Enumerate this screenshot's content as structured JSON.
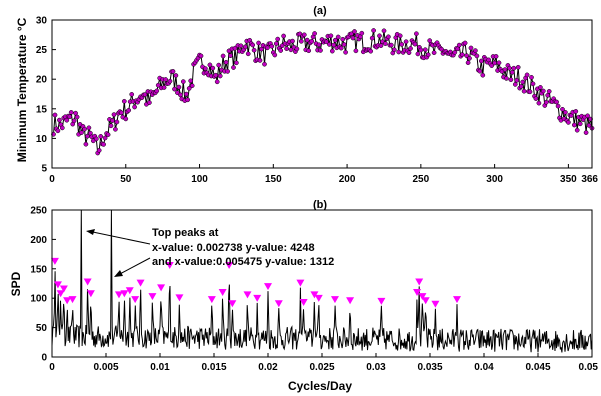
{
  "chart_data": [
    {
      "type": "line",
      "title": "(a)",
      "xlabel": "",
      "ylabel": "Minimum Temperature °C",
      "xlim": [
        0,
        366
      ],
      "ylim": [
        5,
        30
      ],
      "xticks": [
        "0",
        "50",
        "100",
        "150",
        "200",
        "250",
        "300",
        "350",
        "366"
      ],
      "xtick_values": [
        0,
        50,
        100,
        150,
        200,
        250,
        300,
        350,
        366
      ],
      "yticks": [
        "5",
        "10",
        "15",
        "20",
        "25",
        "30"
      ],
      "ytick_values": [
        5,
        10,
        15,
        20,
        25,
        30
      ],
      "line_color": "#000000",
      "marker_color": "#c000c0",
      "series": [
        {
          "x": [
            1,
            6,
            11,
            16,
            21,
            26,
            31,
            36,
            41,
            46,
            51,
            56,
            61,
            66,
            71,
            76,
            81,
            86,
            91,
            96,
            101,
            106,
            111,
            116,
            121,
            126,
            131,
            136,
            141,
            146,
            151,
            156,
            161,
            166,
            171,
            176,
            181,
            186,
            191,
            196,
            201,
            206,
            211,
            216,
            221,
            226,
            231,
            236,
            241,
            246,
            251,
            256,
            261,
            266,
            271,
            276,
            281,
            286,
            291,
            296,
            301,
            306,
            311,
            316,
            321,
            326,
            331,
            336,
            341,
            346,
            351,
            356,
            361,
            366
          ],
          "values": [
            12.5,
            12.2,
            13.1,
            13.5,
            10.5,
            10.2,
            8.0,
            10.8,
            12.2,
            14.5,
            15.0,
            16.5,
            17.5,
            16.2,
            18.0,
            19.5,
            20.2,
            19.0,
            17.0,
            21.0,
            23.0,
            22.5,
            20.0,
            22.5,
            23.5,
            24.0,
            26.5,
            25.0,
            24.5,
            24.0,
            25.0,
            26.0,
            25.5,
            25.8,
            26.0,
            26.2,
            26.0,
            26.3,
            26.5,
            26.2,
            26.0,
            26.5,
            26.3,
            26.5,
            26.8,
            26.3,
            26.0,
            25.8,
            26.0,
            26.0,
            25.5,
            25.0,
            24.5,
            25.0,
            23.5,
            24.0,
            24.5,
            23.5,
            22.0,
            22.5,
            22.5,
            21.5,
            20.5,
            20.5,
            19.5,
            18.5,
            17.5,
            16.5,
            15.5,
            14.5,
            13.5,
            13.0,
            12.5,
            12.0
          ]
        }
      ]
    },
    {
      "type": "line",
      "title": "(b)",
      "xlabel": "Cycles/Day",
      "ylabel": "SPD",
      "xlim": [
        0,
        0.05
      ],
      "ylim": [
        0,
        250
      ],
      "xticks": [
        "0",
        "0.005",
        "0.01",
        "0.015",
        "0.02",
        "0.025",
        "0.03",
        "0.035",
        "0.04",
        "0.045",
        "0.05"
      ],
      "xtick_values": [
        0,
        0.005,
        0.01,
        0.015,
        0.02,
        0.025,
        0.03,
        0.035,
        0.04,
        0.045,
        0.05
      ],
      "yticks": [
        "0",
        "50",
        "100",
        "150",
        "200",
        "250"
      ],
      "ytick_values": [
        0,
        50,
        100,
        150,
        200,
        250
      ],
      "line_color": "#000000",
      "marker_color": "#ff00ff",
      "annotation": {
        "lines": [
          "Top peaks at",
          "x-value: 0.002738 y-value: 4248",
          "and x-value:0.005475 y-value: 1312"
        ]
      },
      "top_peaks": [
        {
          "x": 0.002738,
          "y": 4248
        },
        {
          "x": 0.005475,
          "y": 1312
        }
      ],
      "peaks": [
        {
          "x": 0.00027,
          "y": 155
        },
        {
          "x": 0.00055,
          "y": 115
        },
        {
          "x": 0.0008,
          "y": 100
        },
        {
          "x": 0.0011,
          "y": 108
        },
        {
          "x": 0.0014,
          "y": 88
        },
        {
          "x": 0.0019,
          "y": 90
        },
        {
          "x": 0.0033,
          "y": 120
        },
        {
          "x": 0.0036,
          "y": 100
        },
        {
          "x": 0.0062,
          "y": 98
        },
        {
          "x": 0.0067,
          "y": 100
        },
        {
          "x": 0.0072,
          "y": 105
        },
        {
          "x": 0.0077,
          "y": 90
        },
        {
          "x": 0.0082,
          "y": 118
        },
        {
          "x": 0.0093,
          "y": 95
        },
        {
          "x": 0.0101,
          "y": 110
        },
        {
          "x": 0.0109,
          "y": 148
        },
        {
          "x": 0.0118,
          "y": 93
        },
        {
          "x": 0.0148,
          "y": 90
        },
        {
          "x": 0.0158,
          "y": 102
        },
        {
          "x": 0.0164,
          "y": 148
        },
        {
          "x": 0.0167,
          "y": 83
        },
        {
          "x": 0.0181,
          "y": 98
        },
        {
          "x": 0.019,
          "y": 92
        },
        {
          "x": 0.02,
          "y": 112
        },
        {
          "x": 0.021,
          "y": 83
        },
        {
          "x": 0.023,
          "y": 118
        },
        {
          "x": 0.0233,
          "y": 85
        },
        {
          "x": 0.0243,
          "y": 98
        },
        {
          "x": 0.0247,
          "y": 92
        },
        {
          "x": 0.0262,
          "y": 90
        },
        {
          "x": 0.0276,
          "y": 88
        },
        {
          "x": 0.0305,
          "y": 87
        },
        {
          "x": 0.0338,
          "y": 102
        },
        {
          "x": 0.034,
          "y": 120
        },
        {
          "x": 0.0343,
          "y": 95
        },
        {
          "x": 0.0346,
          "y": 88
        },
        {
          "x": 0.0355,
          "y": 82
        },
        {
          "x": 0.0375,
          "y": 90
        }
      ]
    }
  ]
}
